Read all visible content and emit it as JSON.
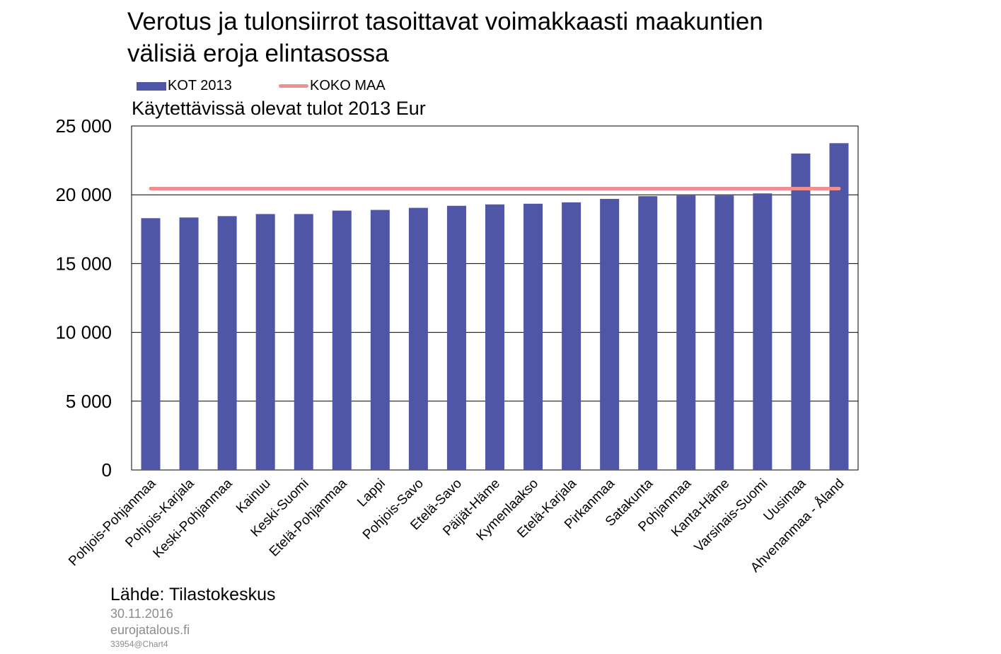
{
  "title_lines": [
    "Verotus ja tulonsiirrot tasoittavat voimakkaasti maakuntien",
    "välisiä eroja elintasossa"
  ],
  "legend": {
    "bar_label": "KOT 2013",
    "line_label": "KOKO MAA"
  },
  "footer": {
    "source": "Lähde: Tilastokeskus",
    "date": "30.11.2016",
    "site": "eurojatalous.fi",
    "code": "33954@Chart4"
  },
  "colors": {
    "bar": "#4f56a5",
    "line": "#ef8f92",
    "grid": "#000000"
  },
  "chart_data": {
    "type": "bar",
    "title": "Käytettävissä olevat tulot 2013 Eur",
    "categories": [
      "Pohjois-Pohjanmaa",
      "Pohjois-Karjala",
      "Keski-Pohjanmaa",
      "Kainuu",
      "Keski-Suomi",
      "Etelä-Pohjanmaa",
      "Lappi",
      "Pohjois-Savo",
      "Etelä-Savo",
      "Päijät-Häme",
      "Kymenlaakso",
      "Etelä-Karjala",
      "Pirkanmaa",
      "Satakunta",
      "Pohjanmaa",
      "Kanta-Häme",
      "Varsinais-Suomi",
      "Uusimaa",
      "Ahvenanmaa - Åland"
    ],
    "series": [
      {
        "name": "KOT 2013",
        "type": "bar",
        "values": [
          18300,
          18350,
          18450,
          18600,
          18600,
          18850,
          18900,
          19050,
          19200,
          19300,
          19350,
          19450,
          19700,
          19900,
          19950,
          19950,
          20100,
          23000,
          23750
        ]
      },
      {
        "name": "KOKO MAA",
        "type": "line",
        "values": [
          20450,
          20450,
          20450,
          20450,
          20450,
          20450,
          20450,
          20450,
          20450,
          20450,
          20450,
          20450,
          20450,
          20450,
          20450,
          20450,
          20450,
          20450,
          20450
        ]
      }
    ],
    "yticks": [
      "0",
      "5 000",
      "10 000",
      "15 000",
      "20 000",
      "25 000"
    ],
    "ylim": [
      0,
      25000
    ],
    "grid": true,
    "legend_position": "top-left"
  }
}
